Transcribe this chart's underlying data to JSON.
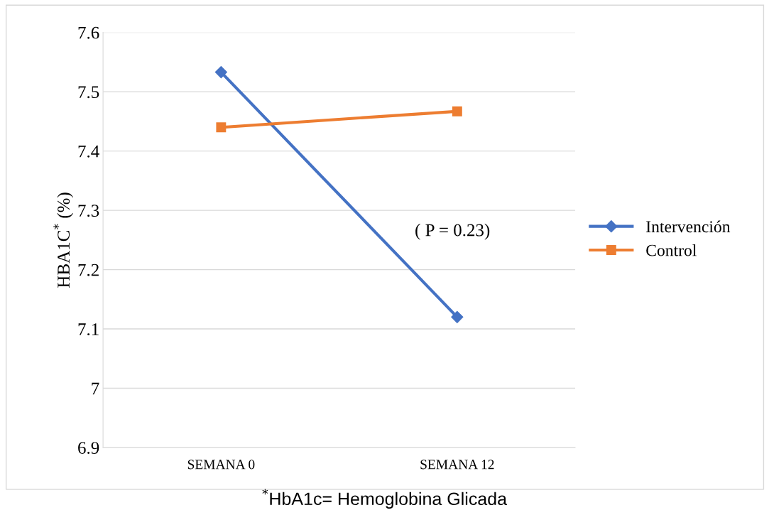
{
  "chart_data": {
    "type": "line",
    "ylabel": "HBA1C$^{*}$ (%)",
    "categories": [
      "SEMANA 0",
      "SEMANA 12"
    ],
    "series": [
      {
        "name": "Intervención",
        "color": "#4472c4",
        "values": [
          7.533,
          7.12
        ],
        "marker": "diamond"
      },
      {
        "name": "Control",
        "color": "#ed7d31",
        "values": [
          7.44,
          7.467
        ],
        "marker": "square"
      }
    ],
    "ylim": [
      6.9,
      7.6
    ],
    "yticks": [
      6.9,
      7,
      7.1,
      7.2,
      7.3,
      7.4,
      7.5,
      7.6
    ],
    "grid": "y",
    "legend": "right",
    "line_style": "solid",
    "annotations": [
      "( P = 0.23)",
      "$^{*}$HbA1c= Hemoglobina Glicada"
    ]
  }
}
